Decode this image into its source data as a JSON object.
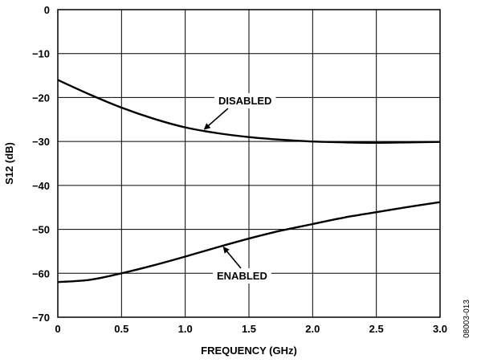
{
  "chart_data": {
    "type": "line",
    "xlabel": "FREQUENCY (GHz)",
    "ylabel": "S12 (dB)",
    "xlim": [
      0,
      3.0
    ],
    "ylim": [
      -70,
      0
    ],
    "x_ticks": [
      "0",
      "0.5",
      "1.0",
      "1.5",
      "2.0",
      "2.5",
      "3.0"
    ],
    "x_tick_values": [
      0,
      0.5,
      1.0,
      1.5,
      2.0,
      2.5,
      3.0
    ],
    "y_ticks": [
      "0",
      "−10",
      "−20",
      "−30",
      "−40",
      "−50",
      "−60",
      "−70"
    ],
    "y_tick_values": [
      0,
      -10,
      -20,
      -30,
      -40,
      -50,
      -60,
      -70
    ],
    "grid": true,
    "series": [
      {
        "name": "DISABLED",
        "x": [
          0,
          0.25,
          0.5,
          0.75,
          1.0,
          1.25,
          1.5,
          1.75,
          2.0,
          2.25,
          2.5,
          2.75,
          3.0
        ],
        "y": [
          -16.0,
          -19.3,
          -22.3,
          -24.8,
          -26.8,
          -28.1,
          -29.0,
          -29.6,
          -30.0,
          -30.2,
          -30.3,
          -30.2,
          -30.1
        ]
      },
      {
        "name": "ENABLED",
        "x": [
          0,
          0.25,
          0.5,
          0.75,
          1.0,
          1.25,
          1.5,
          1.75,
          2.0,
          2.25,
          2.5,
          2.75,
          3.0
        ],
        "y": [
          -62.0,
          -61.5,
          -60.0,
          -58.2,
          -56.2,
          -54.1,
          -52.1,
          -50.3,
          -48.8,
          -47.3,
          -46.1,
          -44.9,
          -43.8
        ]
      }
    ],
    "annotations": [
      {
        "text": "DISABLED",
        "series": 0,
        "arrow_to_x": 1.15
      },
      {
        "text": "ENABLED",
        "series": 1,
        "arrow_to_x": 1.3
      }
    ],
    "figure_id": "08003-013"
  }
}
